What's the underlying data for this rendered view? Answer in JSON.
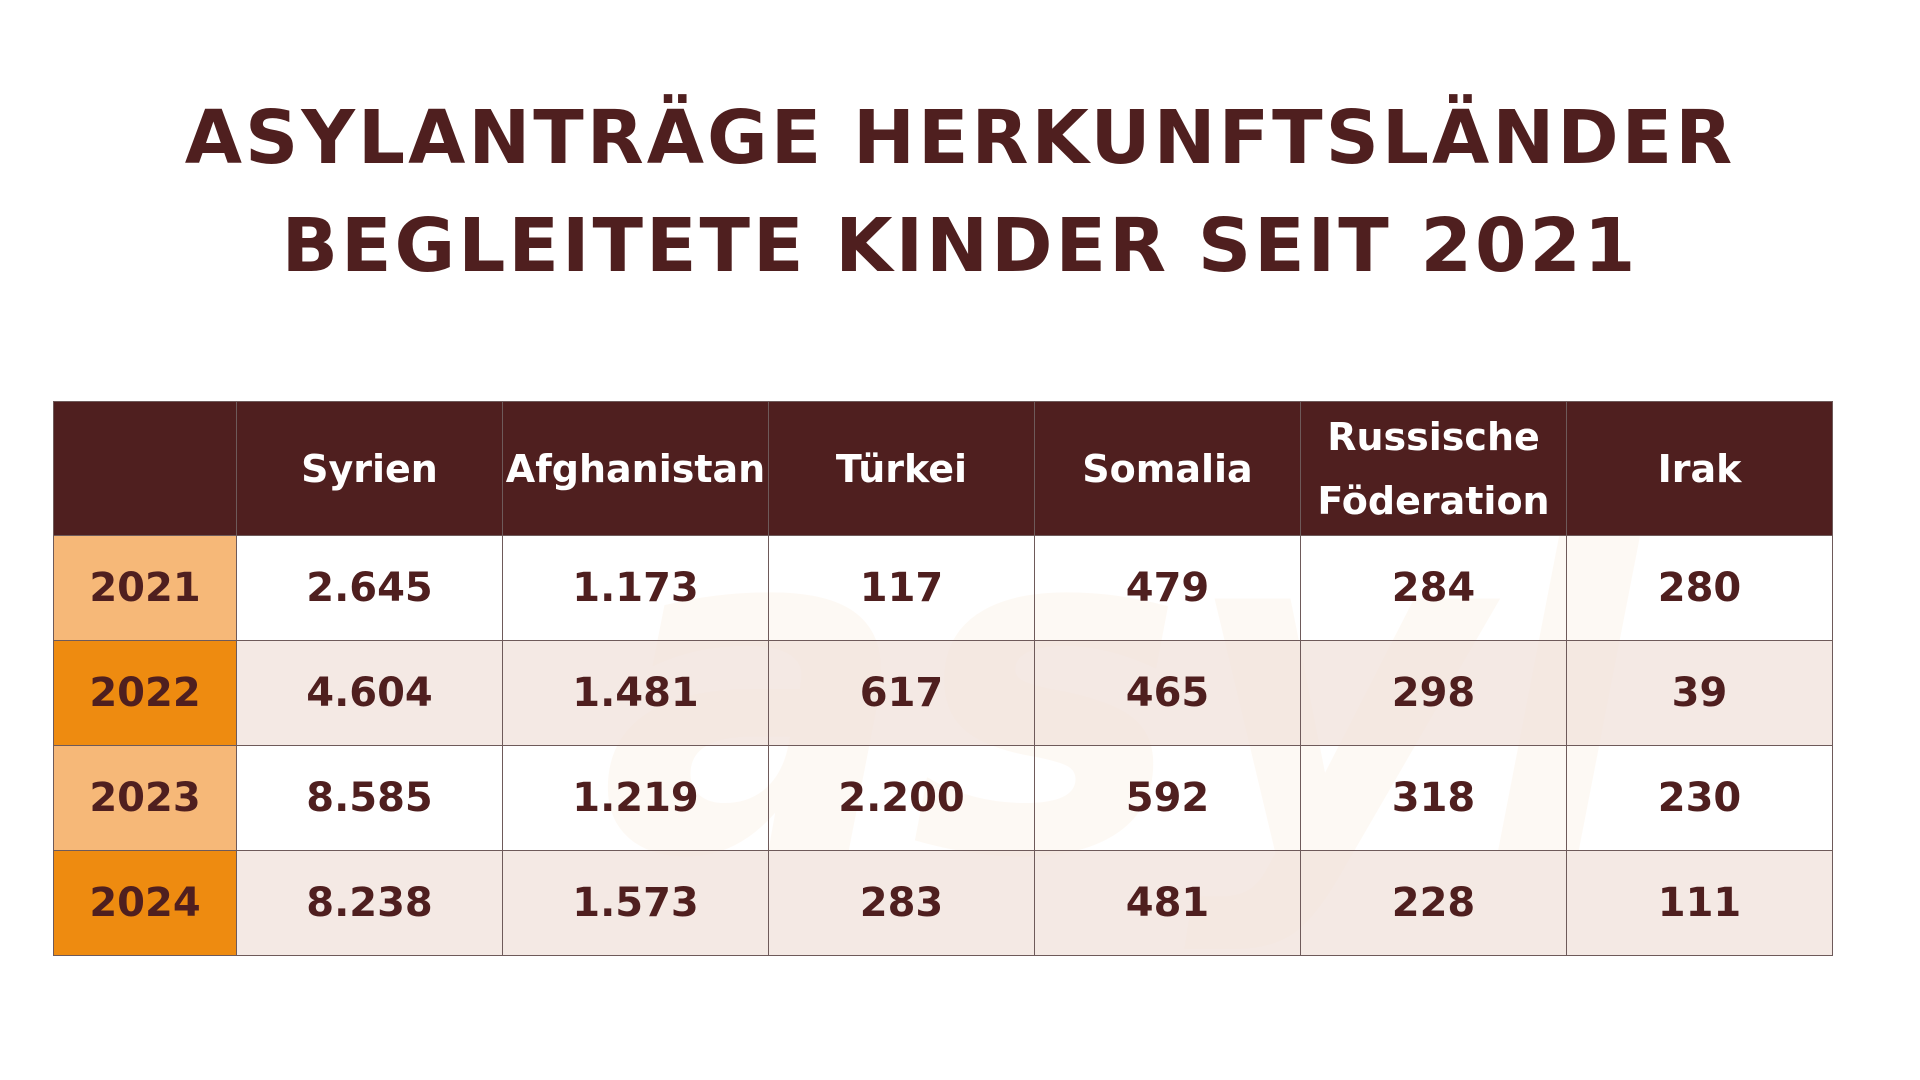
{
  "title": {
    "line1": "Asylanträge Herkunftsländer",
    "line2": "begleitete Kinder seit 2021"
  },
  "watermark_text": "asyl",
  "colors": {
    "header_bg": "#4f1f1f",
    "year_light": "#f6b878",
    "year_dark": "#ee8b10",
    "row_alt": "#f2e6e0",
    "text": "#4f1f1f"
  },
  "chart_data": {
    "type": "table",
    "title": "Asylanträge Herkunftsländer begleitete Kinder seit 2021",
    "columns": [
      "Syrien",
      "Afghanistan",
      "Türkei",
      "Somalia",
      "Russische Föderation",
      "Irak"
    ],
    "rows": [
      {
        "year": "2021",
        "values": [
          "2.645",
          "1.173",
          "117",
          "479",
          "284",
          "280"
        ]
      },
      {
        "year": "2022",
        "values": [
          "4.604",
          "1.481",
          "617",
          "465",
          "298",
          "39"
        ]
      },
      {
        "year": "2023",
        "values": [
          "8.585",
          "1.219",
          "2.200",
          "592",
          "318",
          "230"
        ]
      },
      {
        "year": "2024",
        "values": [
          "8.238",
          "1.573",
          "283",
          "481",
          "228",
          "111"
        ]
      }
    ]
  }
}
